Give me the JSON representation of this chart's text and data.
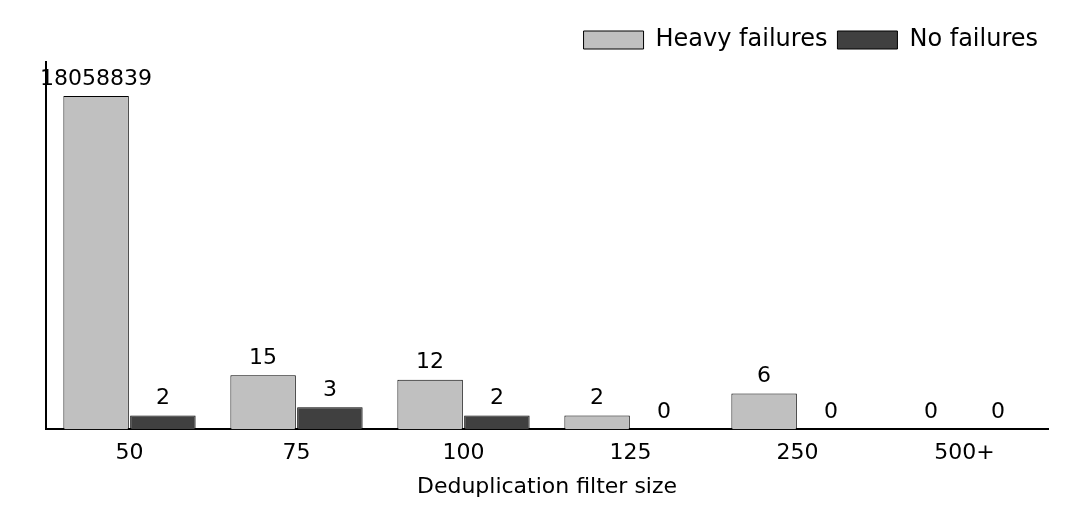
{
  "chart_data": {
    "type": "bar",
    "xlabel": "Deduplication filter size",
    "categories": [
      "50",
      "75",
      "100",
      "125",
      "250",
      "500+"
    ],
    "series": [
      {
        "name": "Heavy failures",
        "color": "#c0c0c0",
        "values": [
          18058839,
          15,
          12,
          2,
          6,
          null
        ],
        "value_labels": [
          "18058839",
          "15",
          "12",
          "2",
          "6",
          "0"
        ]
      },
      {
        "name": "No failures",
        "color": "#404040",
        "values": [
          2,
          3,
          2,
          null,
          null,
          null
        ],
        "value_labels": [
          "2",
          "3",
          "2",
          "0",
          "0",
          "0"
        ]
      }
    ],
    "log": "y",
    "ylim": [
      1,
      100000000
    ],
    "tick_labels": "x",
    "legend": "top right",
    "grid": false
  }
}
